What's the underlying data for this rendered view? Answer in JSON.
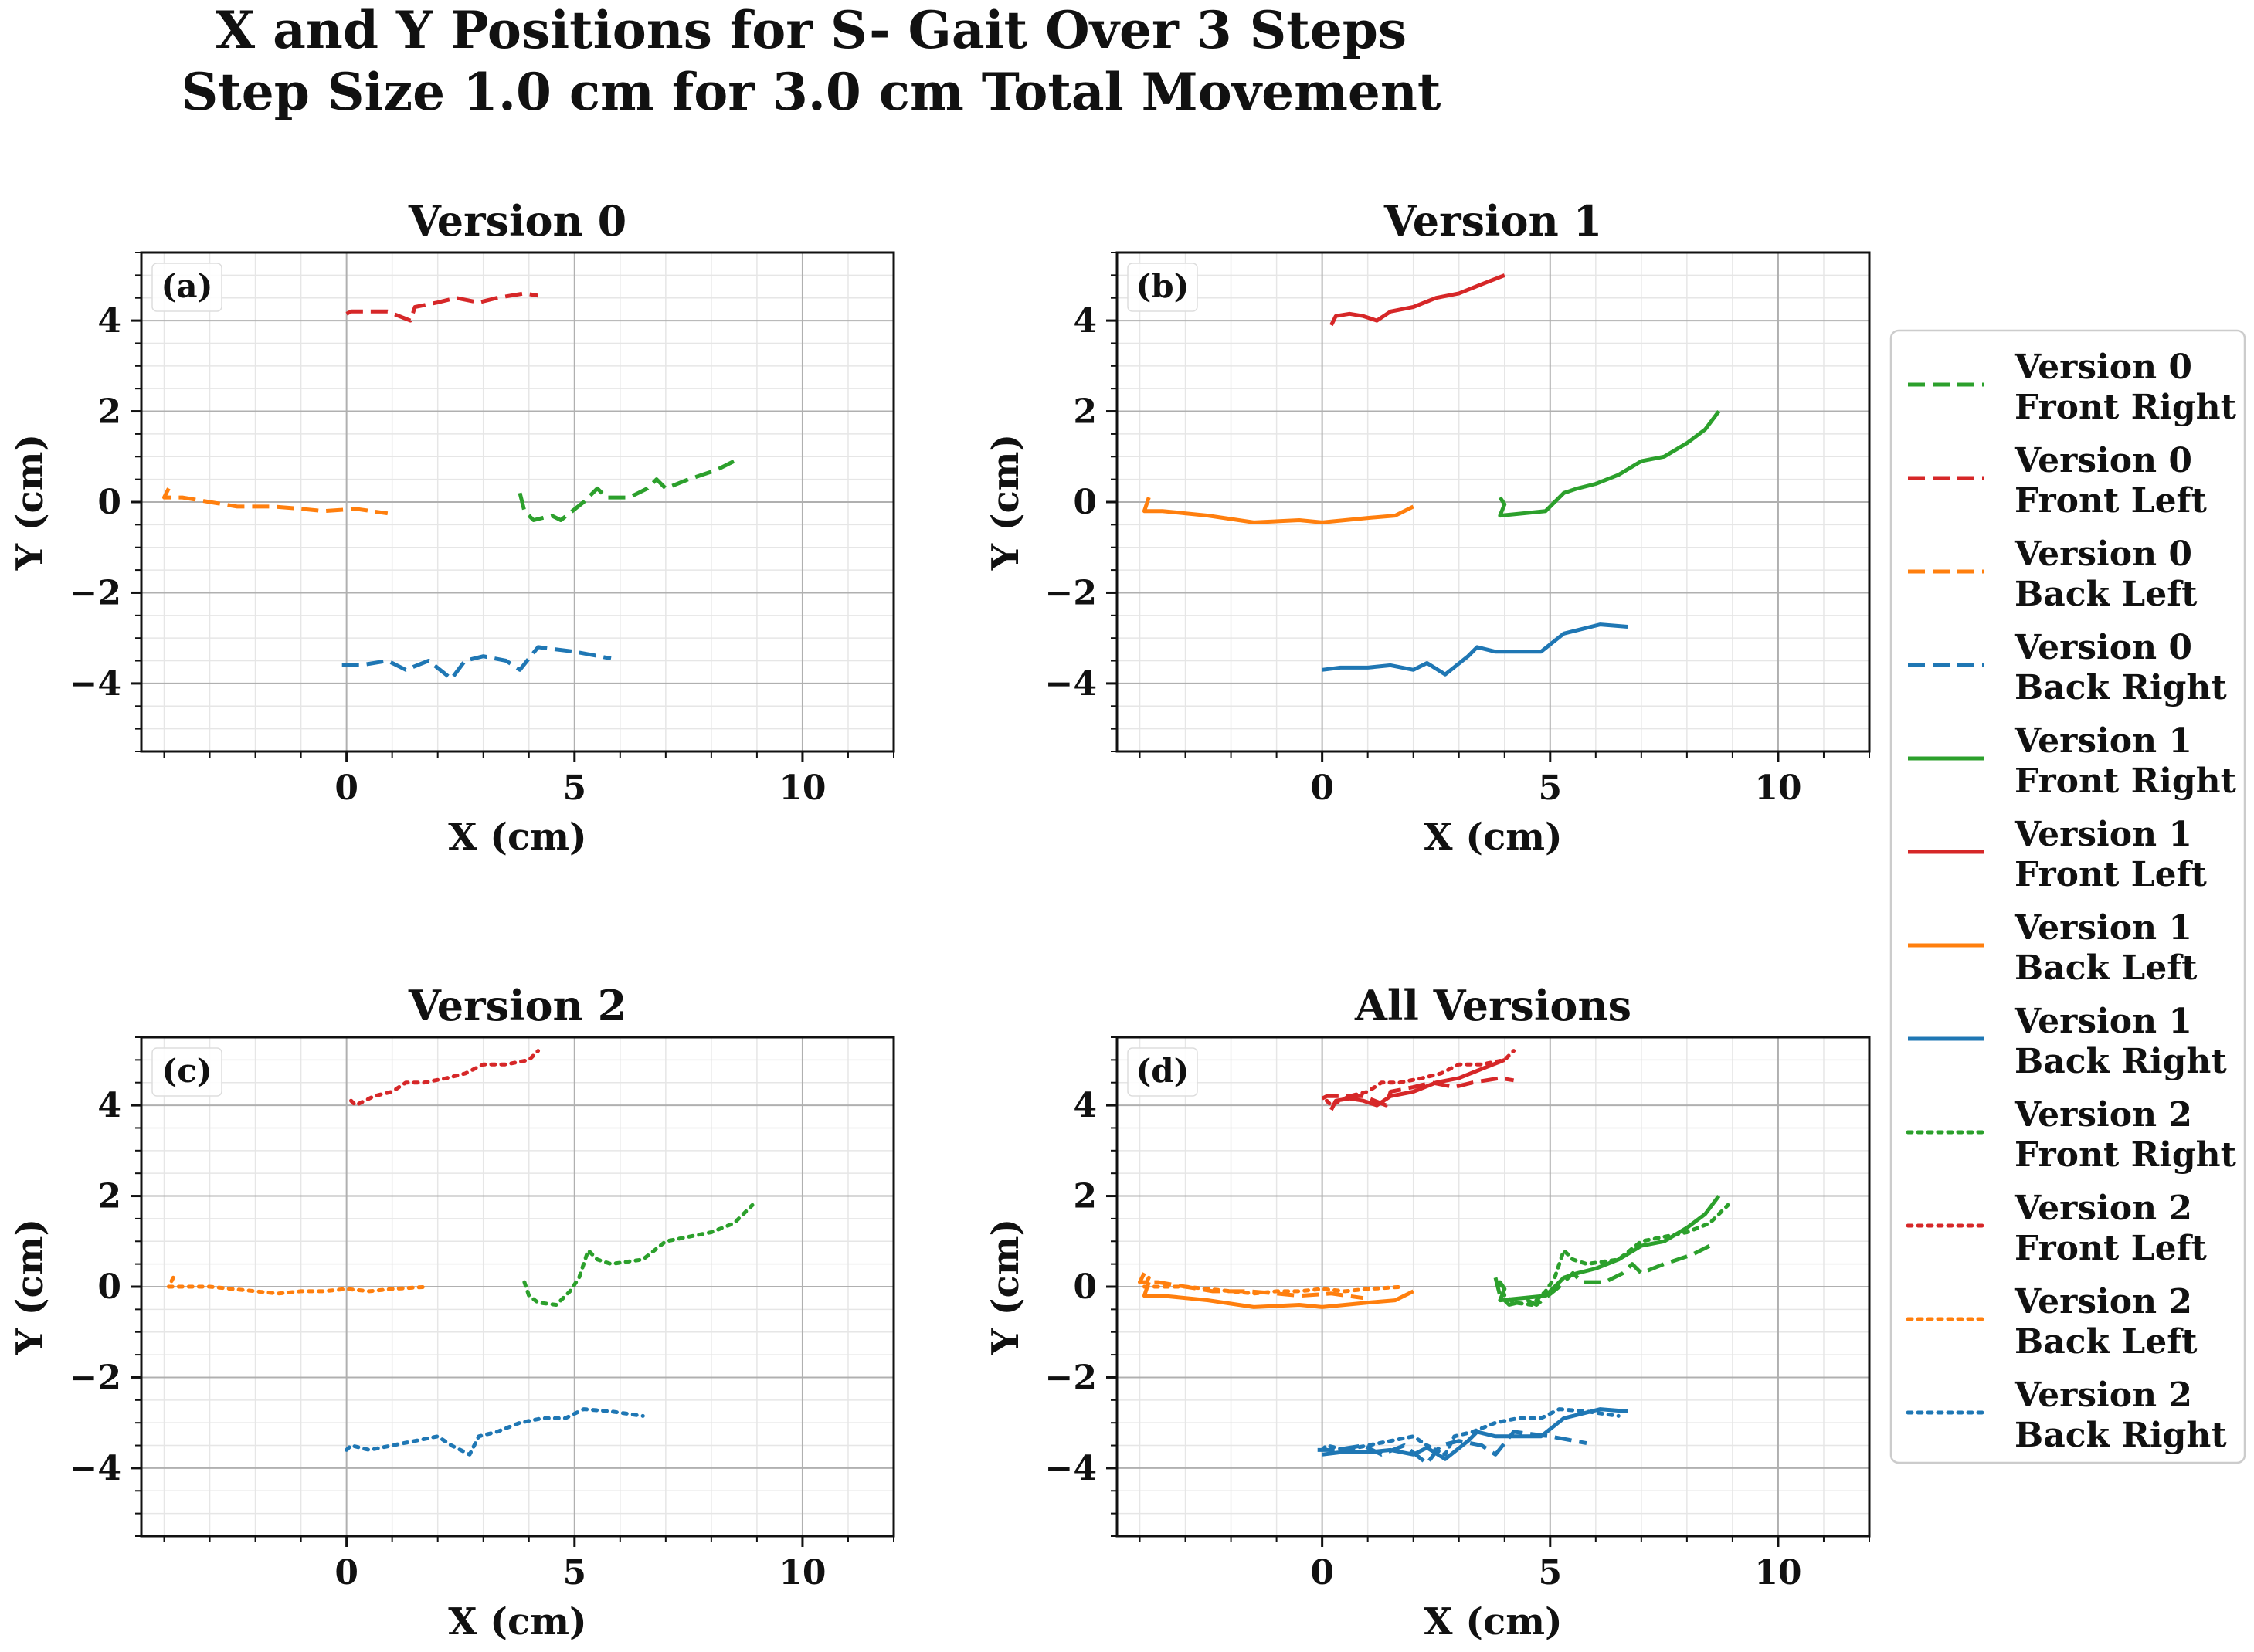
{
  "figure": {
    "title_line1": "X and Y Positions for S- Gait Over 3 Steps",
    "title_line2": "Step Size 1.0 cm for 3.0 cm Total Movement"
  },
  "colors": {
    "front_right": "#2ca02c",
    "front_left": "#d62728",
    "back_left": "#ff7f0e",
    "back_right": "#1f77b4",
    "grid_major": "#b0b0b0",
    "grid_minor": "#e6e6e6"
  },
  "legend": {
    "placement": "right",
    "entries": [
      {
        "line1": "Version 0",
        "line2": "Front Right",
        "leg": "front_right",
        "style": "dashed"
      },
      {
        "line1": "Version 0",
        "line2": "Front Left",
        "leg": "front_left",
        "style": "dashed"
      },
      {
        "line1": "Version 0",
        "line2": "Back Left",
        "leg": "back_left",
        "style": "dashed"
      },
      {
        "line1": "Version 0",
        "line2": "Back Right",
        "leg": "back_right",
        "style": "dashed"
      },
      {
        "line1": "Version 1",
        "line2": "Front Right",
        "leg": "front_right",
        "style": "solid"
      },
      {
        "line1": "Version 1",
        "line2": "Front Left",
        "leg": "front_left",
        "style": "solid"
      },
      {
        "line1": "Version 1",
        "line2": "Back Left",
        "leg": "back_left",
        "style": "solid"
      },
      {
        "line1": "Version 1",
        "line2": "Back Right",
        "leg": "back_right",
        "style": "solid"
      },
      {
        "line1": "Version 2",
        "line2": "Front Right",
        "leg": "front_right",
        "style": "dotted"
      },
      {
        "line1": "Version 2",
        "line2": "Front Left",
        "leg": "front_left",
        "style": "dotted"
      },
      {
        "line1": "Version 2",
        "line2": "Back Left",
        "leg": "back_left",
        "style": "dotted"
      },
      {
        "line1": "Version 2",
        "line2": "Back Right",
        "leg": "back_right",
        "style": "dotted"
      }
    ]
  },
  "chart_data": [
    {
      "type": "line",
      "title": "Version 0",
      "panel_label": "(a)",
      "xlabel": "X (cm)",
      "ylabel": "Y (cm)",
      "xlim": [
        -4.5,
        12
      ],
      "ylim": [
        -5.5,
        5.5
      ],
      "xticks": [
        0,
        5,
        10
      ],
      "xtick_labels": [
        "0",
        "5",
        "10"
      ],
      "yticks": [
        -4,
        -2,
        0,
        2,
        4
      ],
      "ytick_labels": [
        "−4",
        "−2",
        "0",
        "2",
        "4"
      ],
      "grid": true,
      "series": [
        {
          "name": "Version 0 Front Right",
          "leg": "front_right",
          "style": "dashed",
          "x": [
            3.8,
            3.9,
            4.1,
            4.5,
            4.7,
            5.2,
            5.5,
            5.7,
            6.2,
            6.6,
            6.8,
            7.0,
            7.5,
            7.8,
            8.1,
            8.5
          ],
          "y": [
            0.2,
            -0.2,
            -0.4,
            -0.3,
            -0.4,
            0.0,
            0.3,
            0.1,
            0.1,
            0.3,
            0.5,
            0.3,
            0.5,
            0.6,
            0.7,
            0.9
          ]
        },
        {
          "name": "Version 0 Front Left",
          "leg": "front_left",
          "style": "dashed",
          "x": [
            0.0,
            0.1,
            0.9,
            1.4,
            1.5,
            2.0,
            2.4,
            2.9,
            3.3,
            3.9,
            4.2
          ],
          "y": [
            4.15,
            4.2,
            4.2,
            4.0,
            4.3,
            4.4,
            4.5,
            4.4,
            4.5,
            4.6,
            4.55
          ]
        },
        {
          "name": "Version 0 Back Left",
          "leg": "back_left",
          "style": "dashed",
          "x": [
            -3.9,
            -4.0,
            -3.6,
            -3.0,
            -2.4,
            -1.6,
            -1.0,
            -0.5,
            0.2,
            0.9
          ],
          "y": [
            0.3,
            0.1,
            0.1,
            0.0,
            -0.1,
            -0.1,
            -0.15,
            -0.2,
            -0.15,
            -0.25
          ]
        },
        {
          "name": "Version 0 Back Right",
          "leg": "back_right",
          "style": "dashed",
          "x": [
            -0.1,
            0.3,
            0.9,
            1.3,
            1.8,
            2.3,
            2.6,
            3.0,
            3.5,
            3.8,
            4.2,
            5.0,
            5.8
          ],
          "y": [
            -3.6,
            -3.6,
            -3.5,
            -3.7,
            -3.5,
            -3.9,
            -3.5,
            -3.4,
            -3.5,
            -3.7,
            -3.2,
            -3.3,
            -3.45
          ]
        }
      ]
    },
    {
      "type": "line",
      "title": "Version 1",
      "panel_label": "(b)",
      "xlabel": "X (cm)",
      "ylabel": "Y (cm)",
      "xlim": [
        -4.5,
        12
      ],
      "ylim": [
        -5.5,
        5.5
      ],
      "xticks": [
        0,
        5,
        10
      ],
      "xtick_labels": [
        "0",
        "5",
        "10"
      ],
      "yticks": [
        -4,
        -2,
        0,
        2,
        4
      ],
      "ytick_labels": [
        "−4",
        "−2",
        "0",
        "2",
        "4"
      ],
      "grid": true,
      "series": [
        {
          "name": "Version 1 Front Right",
          "leg": "front_right",
          "style": "solid",
          "x": [
            3.9,
            4.0,
            3.9,
            4.9,
            5.3,
            5.6,
            6.0,
            6.5,
            7.0,
            7.5,
            8.0,
            8.4,
            8.7
          ],
          "y": [
            0.1,
            -0.05,
            -0.3,
            -0.2,
            0.2,
            0.3,
            0.4,
            0.6,
            0.9,
            1.0,
            1.3,
            1.6,
            2.0
          ]
        },
        {
          "name": "Version 1 Front Left",
          "leg": "front_left",
          "style": "solid",
          "x": [
            0.2,
            0.3,
            0.6,
            0.9,
            1.2,
            1.5,
            2.0,
            2.5,
            3.0,
            3.5,
            4.0
          ],
          "y": [
            3.9,
            4.1,
            4.15,
            4.1,
            4.0,
            4.2,
            4.3,
            4.5,
            4.6,
            4.8,
            5.0
          ]
        },
        {
          "name": "Version 1 Back Left",
          "leg": "back_left",
          "style": "solid",
          "x": [
            -3.8,
            -3.9,
            -3.5,
            -2.5,
            -1.5,
            -0.5,
            0.0,
            0.5,
            1.0,
            1.6,
            2.0
          ],
          "y": [
            0.1,
            -0.2,
            -0.2,
            -0.3,
            -0.45,
            -0.4,
            -0.45,
            -0.4,
            -0.35,
            -0.3,
            -0.1
          ]
        },
        {
          "name": "Version 1 Back Right",
          "leg": "back_right",
          "style": "solid",
          "x": [
            0.0,
            0.4,
            1.0,
            1.5,
            2.0,
            2.3,
            2.7,
            3.2,
            3.4,
            3.8,
            4.3,
            4.8,
            5.3,
            5.7,
            6.1,
            6.7
          ],
          "y": [
            -3.7,
            -3.65,
            -3.65,
            -3.6,
            -3.7,
            -3.55,
            -3.8,
            -3.4,
            -3.2,
            -3.3,
            -3.3,
            -3.3,
            -2.9,
            -2.8,
            -2.7,
            -2.75
          ]
        }
      ]
    },
    {
      "type": "line",
      "title": "Version 2",
      "panel_label": "(c)",
      "xlabel": "X (cm)",
      "ylabel": "Y (cm)",
      "xlim": [
        -4.5,
        12
      ],
      "ylim": [
        -5.5,
        5.5
      ],
      "xticks": [
        0,
        5,
        10
      ],
      "xtick_labels": [
        "0",
        "5",
        "10"
      ],
      "yticks": [
        -4,
        -2,
        0,
        2,
        4
      ],
      "ytick_labels": [
        "−4",
        "−2",
        "0",
        "2",
        "4"
      ],
      "grid": true,
      "series": [
        {
          "name": "Version 2 Front Right",
          "leg": "front_right",
          "style": "dotted",
          "x": [
            3.9,
            4.0,
            4.2,
            4.6,
            4.9,
            5.1,
            5.3,
            5.5,
            5.8,
            6.5,
            7.0,
            7.5,
            8.0,
            8.5,
            8.9
          ],
          "y": [
            0.1,
            -0.2,
            -0.35,
            -0.4,
            -0.1,
            0.2,
            0.8,
            0.6,
            0.5,
            0.6,
            1.0,
            1.1,
            1.2,
            1.4,
            1.8
          ]
        },
        {
          "name": "Version 2 Front Left",
          "leg": "front_left",
          "style": "dotted",
          "x": [
            0.1,
            0.2,
            0.6,
            1.0,
            1.3,
            1.7,
            2.2,
            2.6,
            3.0,
            3.5,
            4.0,
            4.2
          ],
          "y": [
            4.1,
            4.0,
            4.2,
            4.3,
            4.5,
            4.5,
            4.6,
            4.7,
            4.9,
            4.9,
            5.0,
            5.2
          ]
        },
        {
          "name": "Version 2 Back Left",
          "leg": "back_left",
          "style": "dotted",
          "x": [
            -3.8,
            -3.9,
            -3.0,
            -2.0,
            -1.5,
            -1.0,
            -0.5,
            0.0,
            0.5,
            1.0,
            1.8
          ],
          "y": [
            0.2,
            0.0,
            0.0,
            -0.1,
            -0.15,
            -0.1,
            -0.1,
            -0.05,
            -0.1,
            -0.05,
            0.0
          ]
        },
        {
          "name": "Version 2 Back Right",
          "leg": "back_right",
          "style": "dotted",
          "x": [
            0.0,
            0.1,
            0.5,
            1.0,
            1.5,
            2.0,
            2.3,
            2.7,
            2.9,
            3.3,
            3.8,
            4.3,
            4.8,
            5.2,
            5.8,
            6.5
          ],
          "y": [
            -3.6,
            -3.5,
            -3.6,
            -3.5,
            -3.4,
            -3.3,
            -3.5,
            -3.7,
            -3.3,
            -3.2,
            -3.0,
            -2.9,
            -2.9,
            -2.7,
            -2.75,
            -2.85
          ]
        }
      ]
    },
    {
      "type": "line",
      "title": "All Versions",
      "panel_label": "(d)",
      "xlabel": "X (cm)",
      "ylabel": "Y (cm)",
      "xlim": [
        -4.5,
        12
      ],
      "ylim": [
        -5.5,
        5.5
      ],
      "xticks": [
        0,
        5,
        10
      ],
      "xtick_labels": [
        "0",
        "5",
        "10"
      ],
      "yticks": [
        -4,
        -2,
        0,
        2,
        4
      ],
      "ytick_labels": [
        "−4",
        "−2",
        "0",
        "2",
        "4"
      ],
      "grid": true,
      "combine_panels": [
        0,
        1,
        2
      ],
      "series": []
    }
  ]
}
